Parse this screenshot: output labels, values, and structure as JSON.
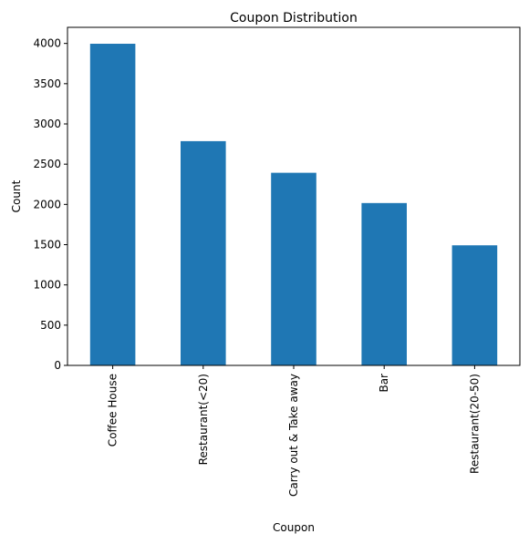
{
  "chart_data": {
    "type": "bar",
    "title": "Coupon Distribution",
    "xlabel": "Coupon",
    "ylabel": "Count",
    "categories": [
      "Coffee House",
      "Restaurant(<20)",
      "Carry out & Take away",
      "Bar",
      "Restaurant(20-50)"
    ],
    "values": [
      3996,
      2786,
      2393,
      2017,
      1492
    ],
    "ylim": [
      0,
      4200
    ],
    "yticks": [
      0,
      500,
      1000,
      1500,
      2000,
      2500,
      3000,
      3500,
      4000
    ],
    "grid": false,
    "bar_color": "#1f77b4"
  }
}
